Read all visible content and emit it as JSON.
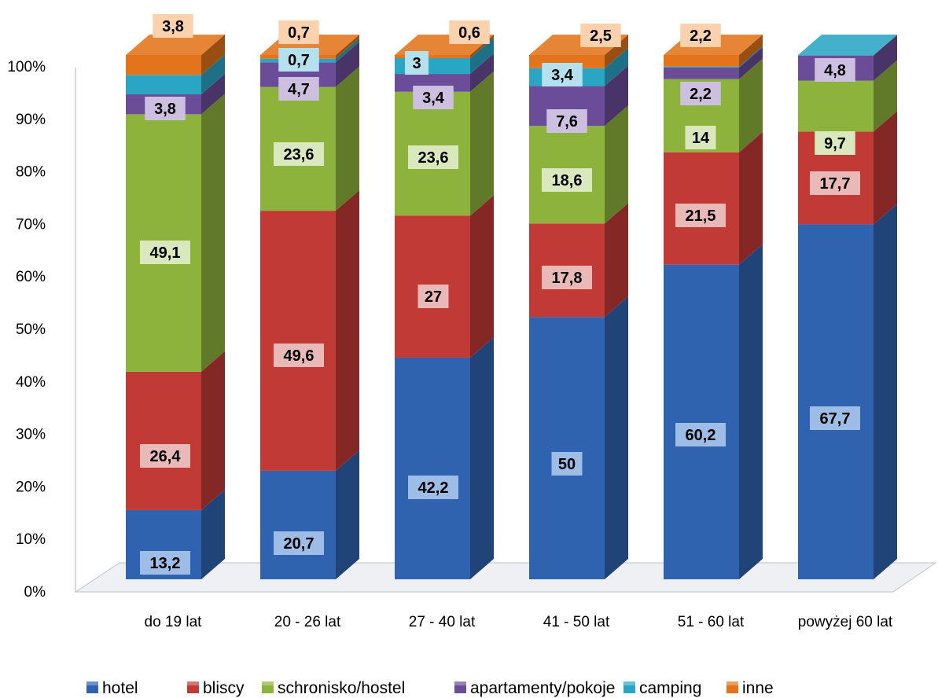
{
  "chart_data": {
    "type": "bar",
    "stacked": true,
    "percent": true,
    "categories": [
      "do 19 lat",
      "20 - 26 lat",
      "27 - 40 lat",
      "41 - 50 lat",
      "51 - 60 lat",
      "powyżej 60 lat"
    ],
    "series": [
      {
        "name": "hotel",
        "color": "#2f63b0",
        "label_bg": "#9dbce6",
        "values": [
          13.2,
          20.7,
          42.2,
          50,
          60.2,
          67.7
        ]
      },
      {
        "name": "bliscy",
        "color": "#c23a36",
        "label_bg": "#e9b9b8",
        "values": [
          26.4,
          49.6,
          27,
          17.8,
          21.5,
          17.7
        ]
      },
      {
        "name": "schronisko/hostel",
        "color": "#8db33d",
        "label_bg": "#d9e8bd",
        "values": [
          49.1,
          23.6,
          23.6,
          18.6,
          14,
          9.7
        ]
      },
      {
        "name": "apartamenty/pokoje",
        "color": "#6b4c98",
        "label_bg": "#cdbfe0",
        "values": [
          3.8,
          4.7,
          3.4,
          7.6,
          2.2,
          4.8
        ]
      },
      {
        "name": "camping",
        "color": "#2aa5c4",
        "label_bg": "#b3e1ee",
        "values": [
          3.7,
          0.7,
          3,
          3.4,
          0.2,
          0.1
        ]
      },
      {
        "name": "inne",
        "color": "#e3741b",
        "label_bg": "#fbd1ae",
        "values": [
          3.8,
          0.7,
          0.6,
          2.5,
          2.2,
          0
        ]
      }
    ],
    "data_labels": [
      [
        "13,2",
        "20,7",
        "42,2",
        "50",
        "60,2",
        "67,7"
      ],
      [
        "26,4",
        "49,6",
        "27",
        "17,8",
        "21,5",
        "17,7"
      ],
      [
        "49,1",
        "23,6",
        "23,6",
        "18,6",
        "14",
        "9,7"
      ],
      [
        "3,8",
        "4,7",
        "3,4",
        "7,6",
        "2,2",
        "4,8"
      ],
      [
        "",
        "0,7",
        "3",
        "3,4",
        "",
        ""
      ],
      [
        "3,8",
        "0,7",
        "0,6",
        "2,5",
        "2,2",
        ""
      ]
    ],
    "yticks": [
      "0%",
      "10%",
      "20%",
      "30%",
      "40%",
      "50%",
      "60%",
      "70%",
      "80%",
      "90%",
      "100%"
    ],
    "ylim": [
      0,
      100
    ],
    "legend_position": "bottom",
    "grid": false
  }
}
